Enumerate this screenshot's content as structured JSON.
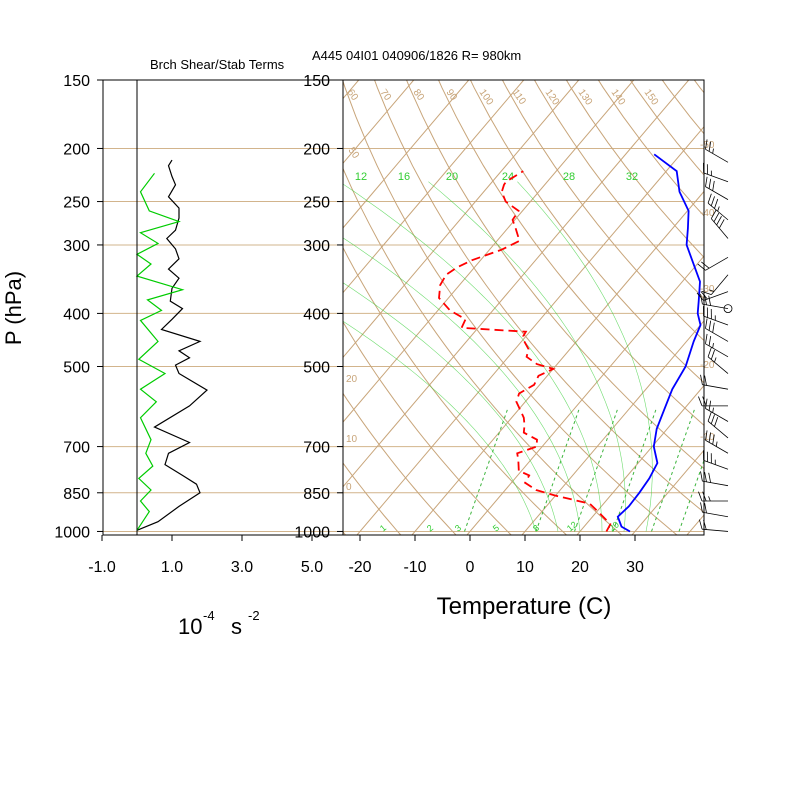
{
  "header": {
    "left_title": "Brch Shear/Stab Terms",
    "right_title": "A445 04I01 040906/1826 R= 980km"
  },
  "colors": {
    "background": "#ffffff",
    "axis": "#000000",
    "isobar": "#d2b48c",
    "isotherm": "#c8a57a",
    "dry_adiabat": "#c8a57a",
    "mixing_ratio": "#3cb43c",
    "moist_adiabat_label": "#32cd32",
    "temperature": "#0000ff",
    "dewpoint": "#ff0000",
    "shear_term": "#000000",
    "stability_term": "#00cc00",
    "wind_barbs": "#000000"
  },
  "pressure_axis": {
    "label": "P (hPa)",
    "ticks": [
      "150",
      "200",
      "250",
      "300",
      "400",
      "500",
      "700",
      "850",
      "1000"
    ]
  },
  "left_panel": {
    "units_base": "10",
    "units_exp1": "-4",
    "units_s": "s",
    "units_exp2": "-2",
    "x_ticks": [
      "-1.0",
      "1.0",
      "3.0",
      "5.0"
    ]
  },
  "skewt_panel": {
    "xlabel": "Temperature (C)",
    "x_ticks": [
      "-20",
      "-10",
      "0",
      "10",
      "20",
      "30"
    ],
    "isotherm_labels": [
      "-50",
      "-40",
      "-30",
      "-20",
      "-10",
      "0",
      "10",
      "20"
    ],
    "dry_adiabat_labels": [
      "60",
      "70",
      "80",
      "90",
      "100",
      "110",
      "120",
      "130",
      "140",
      "150",
      "50"
    ],
    "mixing_ratio_labels": [
      "1",
      "2",
      "3",
      "5",
      "8",
      "12",
      "20"
    ],
    "moist_adiabat_labels": [
      "12",
      "16",
      "20",
      "24",
      "28",
      "32"
    ]
  },
  "chart_data": [
    {
      "type": "line",
      "title": "Brch Shear/Stab Terms",
      "xlabel": "10^-4 s^-2",
      "ylabel": "P (hPa)",
      "y_scale": "log",
      "ylim": [
        1000,
        150
      ],
      "xlim": [
        -1.0,
        5.0
      ],
      "series": [
        {
          "color": "#000000",
          "points": [
            [
              1.0,
              210
            ],
            [
              0.9,
              215
            ],
            [
              1.0,
              225
            ],
            [
              1.1,
              233
            ],
            [
              0.9,
              245
            ],
            [
              1.2,
              257
            ],
            [
              1.2,
              268
            ],
            [
              1.1,
              282
            ],
            [
              0.85,
              292
            ],
            [
              1.1,
              305
            ],
            [
              1.2,
              318
            ],
            [
              0.9,
              332
            ],
            [
              1.2,
              345
            ],
            [
              1.0,
              360
            ],
            [
              0.95,
              380
            ],
            [
              1.3,
              392
            ],
            [
              1.0,
              410
            ],
            [
              0.7,
              428
            ],
            [
              1.8,
              450
            ],
            [
              1.2,
              468
            ],
            [
              1.5,
              482
            ],
            [
              1.1,
              497
            ],
            [
              1.2,
              515
            ],
            [
              2.0,
              552
            ],
            [
              1.5,
              590
            ],
            [
              0.5,
              645
            ],
            [
              1.5,
              688
            ],
            [
              0.9,
              720
            ],
            [
              0.8,
              755
            ],
            [
              1.3,
              790
            ],
            [
              1.7,
              820
            ],
            [
              1.8,
              850
            ],
            [
              1.2,
              900
            ],
            [
              0.6,
              960
            ],
            [
              0.0,
              995
            ]
          ]
        },
        {
          "color": "#00cc00",
          "points": [
            [
              0.5,
              222
            ],
            [
              0.1,
              240
            ],
            [
              0.35,
              260
            ],
            [
              1.2,
              272
            ],
            [
              0.1,
              285
            ],
            [
              0.6,
              298
            ],
            [
              0.0,
              312
            ],
            [
              0.4,
              325
            ],
            [
              0.0,
              342
            ],
            [
              1.3,
              362
            ],
            [
              0.3,
              378
            ],
            [
              0.7,
              395
            ],
            [
              0.1,
              412
            ],
            [
              0.6,
              450
            ],
            [
              0.05,
              485
            ],
            [
              0.8,
              515
            ],
            [
              0.1,
              550
            ],
            [
              0.55,
              580
            ],
            [
              0.1,
              620
            ],
            [
              0.4,
              680
            ],
            [
              0.25,
              720
            ],
            [
              0.45,
              760
            ],
            [
              0.05,
              800
            ],
            [
              0.4,
              840
            ],
            [
              0.1,
              880
            ],
            [
              0.35,
              920
            ],
            [
              0.0,
              995
            ]
          ]
        }
      ]
    },
    {
      "type": "line",
      "title": "A445 04I01 040906/1826 R= 980km",
      "xlabel": "Temperature (C)",
      "ylabel": "P (hPa)",
      "y_scale": "log",
      "ylim": [
        1000,
        150
      ],
      "xlim": [
        -23,
        43
      ],
      "series": [
        {
          "color": "#0000ff",
          "points": [
            [
              29.1,
              1000
            ],
            [
              26.8,
              980
            ],
            [
              24.6,
              940
            ],
            [
              25.0,
              900
            ],
            [
              24.8,
              850
            ],
            [
              24.4,
              800
            ],
            [
              23.5,
              750
            ],
            [
              20.3,
              700
            ],
            [
              18.1,
              650
            ],
            [
              16.5,
              600
            ],
            [
              14.8,
              550
            ],
            [
              13.7,
              500
            ],
            [
              11.3,
              450
            ],
            [
              10.0,
              420
            ],
            [
              7.7,
              400
            ],
            [
              6.0,
              380
            ],
            [
              3.2,
              350
            ],
            [
              -1.5,
              320
            ],
            [
              -4.9,
              300
            ],
            [
              -7.2,
              280
            ],
            [
              -9.8,
              260
            ],
            [
              -14.4,
              240
            ],
            [
              -18.1,
              220
            ],
            [
              -24.8,
              205
            ]
          ]
        },
        {
          "color": "#ff0000",
          "points": [
            [
              24.8,
              1000
            ],
            [
              24.4,
              970
            ],
            [
              20.2,
              920
            ],
            [
              17.5,
              890
            ],
            [
              10.0,
              860
            ],
            [
              5.6,
              840
            ],
            [
              2.5,
              815
            ],
            [
              2.1,
              790
            ],
            [
              -0.5,
              775
            ],
            [
              -2.3,
              740
            ],
            [
              -3.5,
              720
            ],
            [
              -1.0,
              700
            ],
            [
              -2.0,
              680
            ],
            [
              -5.5,
              660
            ],
            [
              -6.5,
              640
            ],
            [
              -7.8,
              620
            ],
            [
              -11.6,
              580
            ],
            [
              -12.4,
              560
            ],
            [
              -11.0,
              540
            ],
            [
              -11.6,
              520
            ],
            [
              -10.0,
              505
            ],
            [
              -13.7,
              495
            ],
            [
              -16.7,
              480
            ],
            [
              -17.5,
              465
            ],
            [
              -19.5,
              450
            ],
            [
              -20.5,
              440
            ],
            [
              -20.7,
              432
            ],
            [
              -33.0,
              425
            ],
            [
              -33.6,
              410
            ],
            [
              -37.8,
              395
            ],
            [
              -41.7,
              375
            ],
            [
              -43.5,
              355
            ],
            [
              -44.0,
              340
            ],
            [
              -43.2,
              330
            ],
            [
              -41.6,
              320
            ],
            [
              -37.8,
              306
            ],
            [
              -35.9,
              295
            ],
            [
              -38.5,
              280
            ],
            [
              -40.4,
              270
            ],
            [
              -40.7,
              260
            ],
            [
              -44.5,
              250
            ],
            [
              -46.7,
              240
            ],
            [
              -47.4,
              233
            ],
            [
              -47.5,
              230
            ],
            [
              -46.0,
              220
            ]
          ]
        }
      ]
    },
    {
      "type": "line",
      "title": "wind barbs",
      "y_scale": "log",
      "ylim": [
        1000,
        150
      ],
      "series": [
        {
          "color": "#000000",
          "points": [
            [
              25,
              212
            ],
            [
              25,
              230
            ],
            [
              30,
              248
            ],
            [
              35,
              270
            ],
            [
              40,
              292
            ],
            [
              20,
              316
            ],
            [
              15,
              340
            ],
            [
              20,
              365
            ],
            [
              30,
              392
            ],
            [
              35,
              420
            ],
            [
              30,
              450
            ],
            [
              25,
              480
            ],
            [
              25,
              515
            ],
            [
              20,
              550
            ],
            [
              20,
              590
            ],
            [
              25,
              630
            ],
            [
              30,
              675
            ],
            [
              35,
              720
            ],
            [
              35,
              770
            ],
            [
              30,
              825
            ],
            [
              25,
              880
            ],
            [
              20,
              940
            ],
            [
              20,
              1000
            ]
          ]
        }
      ]
    }
  ]
}
